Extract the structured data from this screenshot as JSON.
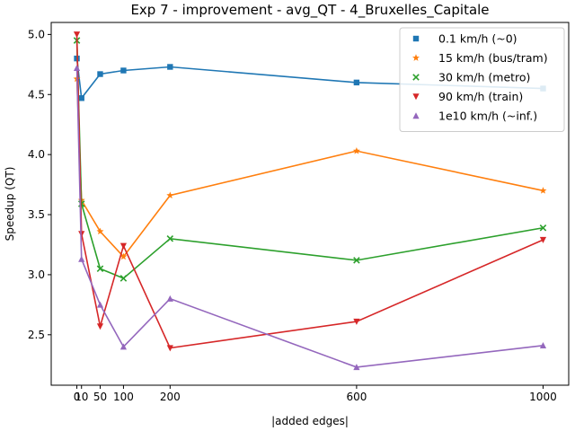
{
  "chart_data": {
    "type": "line",
    "title": "Exp 7 - improvement - avg_QT - 4_Bruxelles_Capitale",
    "xlabel": "|added edges|",
    "ylabel": "Speedup (QT)",
    "x": [
      0,
      10,
      50,
      100,
      200,
      600,
      1000
    ],
    "xticks": [
      0,
      10,
      50,
      100,
      200,
      600,
      1000
    ],
    "xtick_labels": [
      "0",
      "10",
      "50",
      "100",
      "200",
      "600",
      "1000"
    ],
    "yticks": [
      2.5,
      3.0,
      3.5,
      4.0,
      4.5,
      5.0
    ],
    "ytick_labels": [
      "2.5",
      "3.0",
      "3.5",
      "4.0",
      "4.5",
      "5.0"
    ],
    "xlim": [
      -55,
      1055
    ],
    "ylim": [
      2.08,
      5.1
    ],
    "grid": false,
    "legend_position": "top-right",
    "series": [
      {
        "name": "0.1 km/h (~0)",
        "color": "#1f77b4",
        "marker": "square",
        "values": [
          4.8,
          4.47,
          4.67,
          4.7,
          4.73,
          4.6,
          4.55
        ]
      },
      {
        "name": "15 km/h (bus/tram)",
        "color": "#ff7f0e",
        "marker": "star",
        "values": [
          4.63,
          3.62,
          3.36,
          3.15,
          3.66,
          4.03,
          3.7
        ]
      },
      {
        "name": "30 km/h (metro)",
        "color": "#2ca02c",
        "marker": "x",
        "values": [
          4.95,
          3.59,
          3.05,
          2.97,
          3.3,
          3.12,
          3.39
        ]
      },
      {
        "name": "90 km/h (train)",
        "color": "#d62728",
        "marker": "triangle-down",
        "values": [
          5.0,
          3.34,
          2.57,
          3.24,
          2.39,
          2.61,
          3.29
        ]
      },
      {
        "name": "1e10 km/h (~inf.)",
        "color": "#9467bd",
        "marker": "triangle-up",
        "values": [
          4.72,
          3.13,
          2.75,
          2.4,
          2.8,
          2.23,
          2.41
        ]
      }
    ]
  }
}
